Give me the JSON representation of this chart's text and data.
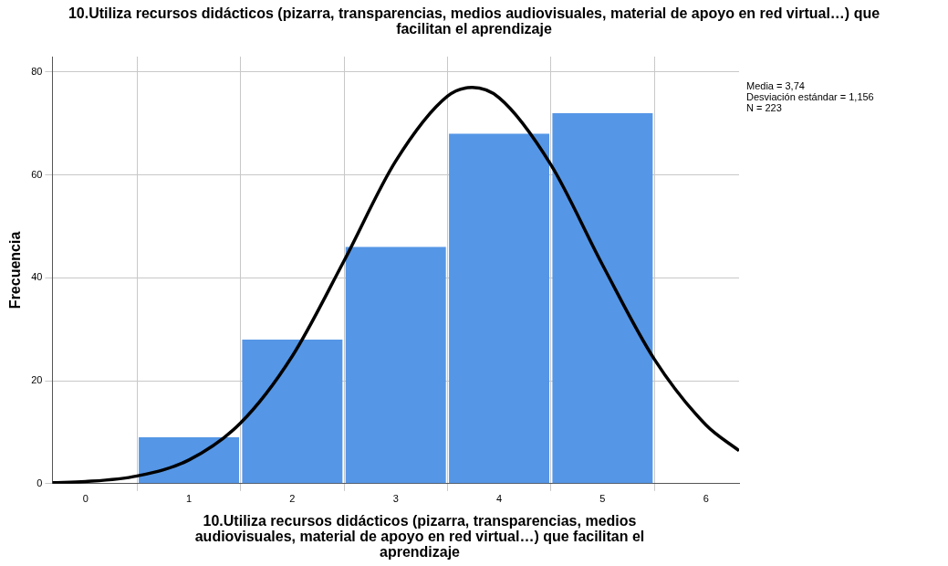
{
  "chart_data": {
    "type": "histogram",
    "title": "10.Utiliza recursos didácticos (pizarra, transparencias, medios audiovisuales, material de apoyo en red virtual…) que facilitan el aprendizaje",
    "xlabel": "10.Utiliza recursos didácticos (pizarra, transparencias, medios audiovisuales, material de apoyo en red virtual…) que facilitan el aprendizaje",
    "ylabel": "Frecuencia",
    "series": [
      {
        "color": "#5596e6",
        "bins": [
          0.5,
          1.5,
          2.5,
          3.5,
          4.5,
          5.5
        ],
        "values": [
          9,
          28,
          46,
          68,
          72
        ]
      },
      {
        "type": "line",
        "color": "#000000",
        "x": [
          -0.32,
          0,
          0.5,
          1,
          1.5,
          2,
          2.5,
          3,
          3.5,
          3.74,
          4,
          4.5,
          5,
          5.5,
          6,
          6.32
        ],
        "values": [
          0.2,
          0.4,
          1.5,
          4.6,
          11.8,
          24.8,
          43.3,
          62.7,
          75.3,
          77.0,
          75.0,
          62.0,
          42.5,
          24.2,
          11.4,
          6.4
        ]
      }
    ],
    "xlim": [
      -0.32,
      6.32
    ],
    "xticks": [
      0,
      1,
      2,
      3,
      4,
      5,
      6
    ],
    "ylim": [
      0,
      83
    ],
    "yticks": [
      0,
      20,
      40,
      60,
      80
    ],
    "grid": true,
    "legend": false,
    "marker": "none",
    "line_style": "solid",
    "annotations": [
      "Media = 3,74",
      "Desviación estándar = 1,156",
      "N = 223"
    ]
  }
}
